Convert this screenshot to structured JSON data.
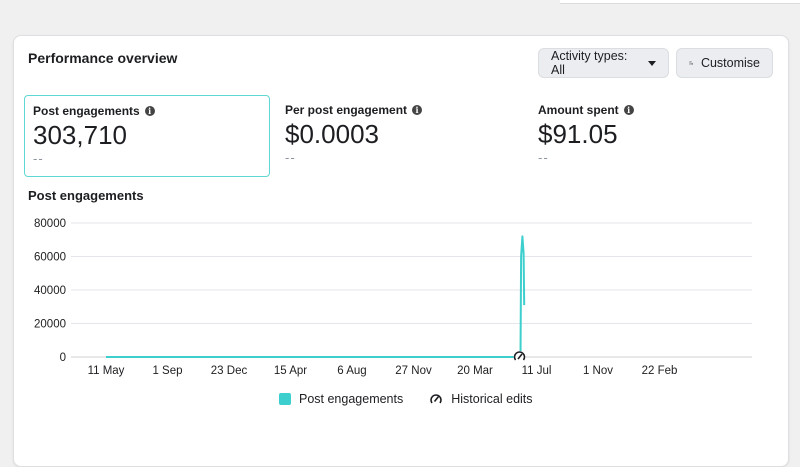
{
  "panel": {
    "title": "Performance overview",
    "activity_button": "Activity types: All",
    "customise_button": "Customise"
  },
  "metrics": [
    {
      "label": "Post engagements",
      "value": "303,710",
      "compare": "--",
      "selected": true
    },
    {
      "label": "Per post engagement",
      "value": "$0.0003",
      "compare": "--",
      "selected": false
    },
    {
      "label": "Amount spent",
      "value": "$91.05",
      "compare": "--",
      "selected": false
    }
  ],
  "colors": {
    "series": "#3ccfce",
    "grid": "#e4e6eb",
    "selected_border": "#5fd8d4"
  },
  "icons": {
    "info": "info-icon",
    "caret": "caret-down-icon",
    "customise": "sliders-gear-icon",
    "historical_edit": "pencil-gauge-icon"
  },
  "chart_data": {
    "type": "line",
    "title": "Post engagements",
    "y_ticks": [
      "0",
      "20000",
      "40000",
      "60000",
      "80000"
    ],
    "ylim": [
      0,
      80000
    ],
    "x_tick_labels": [
      "11 May",
      "1 Sep",
      "23 Dec",
      "15 Apr",
      "6 Aug",
      "27 Nov",
      "20 Mar",
      "11 Jul",
      "1 Nov",
      "22 Feb"
    ],
    "grid": true,
    "series": [
      {
        "name": "Post engagements",
        "points": [
          {
            "x": 0,
            "y": 0
          },
          {
            "x": 6.74,
            "y": 0
          },
          {
            "x": 6.75,
            "y": 60000
          },
          {
            "x": 6.77,
            "y": 72000
          },
          {
            "x": 6.79,
            "y": 62000
          },
          {
            "x": 6.8,
            "y": 31000
          }
        ]
      }
    ],
    "legend": [
      "Post engagements",
      "Historical edits"
    ]
  }
}
